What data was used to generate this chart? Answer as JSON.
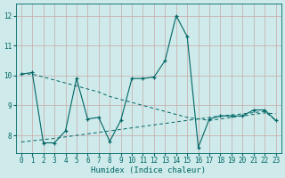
{
  "xlabel": "Humidex (Indice chaleur)",
  "xlim": [
    -0.5,
    23.5
  ],
  "ylim": [
    7.4,
    12.4
  ],
  "yticks": [
    8,
    9,
    10,
    11,
    12
  ],
  "xticks": [
    0,
    1,
    2,
    3,
    4,
    5,
    6,
    7,
    8,
    9,
    10,
    11,
    12,
    13,
    14,
    15,
    16,
    17,
    18,
    19,
    20,
    21,
    22,
    23
  ],
  "bg_color": "#ceeaea",
  "grid_color": "#b0d8d8",
  "line_color": "#006666",
  "series": [
    {
      "x": [
        0,
        1,
        2,
        3,
        4,
        5,
        6,
        7,
        8,
        9,
        10,
        11,
        12,
        13,
        14,
        15,
        16,
        17,
        18,
        19,
        20,
        21,
        22,
        23
      ],
      "y": [
        10.05,
        10.05,
        9.95,
        9.85,
        9.75,
        9.65,
        9.55,
        9.45,
        9.3,
        9.2,
        9.1,
        9.0,
        8.9,
        8.8,
        8.7,
        8.6,
        8.55,
        8.5,
        8.55,
        8.6,
        8.65,
        8.7,
        8.75,
        8.72
      ],
      "linestyle": "--",
      "marker": null
    },
    {
      "x": [
        0,
        1,
        2,
        3,
        4,
        5,
        6,
        7,
        8,
        9,
        10,
        11,
        12,
        13,
        14,
        15,
        16,
        17,
        18,
        19,
        20,
        21,
        22,
        23
      ],
      "y": [
        7.78,
        7.82,
        7.86,
        7.9,
        7.95,
        8.0,
        8.05,
        8.1,
        8.15,
        8.2,
        8.25,
        8.3,
        8.35,
        8.4,
        8.45,
        8.5,
        8.55,
        8.6,
        8.65,
        8.68,
        8.72,
        8.76,
        8.8,
        8.5
      ],
      "linestyle": "--",
      "marker": null
    },
    {
      "x": [
        0,
        1,
        2,
        3,
        4,
        5,
        6,
        7,
        8,
        9,
        10,
        11,
        12,
        13,
        14,
        15,
        16,
        17,
        18,
        19,
        20,
        21,
        22,
        23
      ],
      "y": [
        10.05,
        10.1,
        7.75,
        7.75,
        8.15,
        9.9,
        8.55,
        8.6,
        7.8,
        8.5,
        9.9,
        9.9,
        9.95,
        10.5,
        12.0,
        11.3,
        7.6,
        8.55,
        8.65,
        8.65,
        8.65,
        8.85,
        8.85,
        8.5
      ],
      "linestyle": "-",
      "marker": "+"
    }
  ]
}
